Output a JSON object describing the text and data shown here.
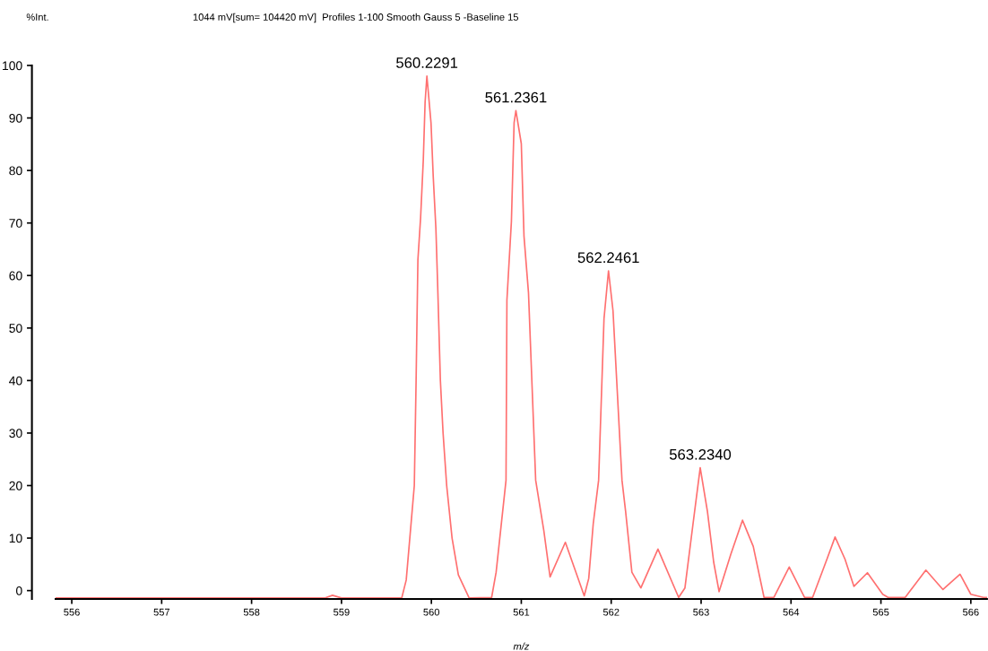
{
  "chart_data": {
    "type": "line",
    "title": "1044 mV[sum= 104420 mV]  Profiles 1-100 Smooth Gauss 5 -Baseline 15",
    "ylabel": "%Int.",
    "xlabel": "m/z",
    "series": [
      {
        "color": "#ff7070",
        "x": [
          555.82,
          558.82,
          558.9,
          559.0,
          559.67,
          559.72,
          559.76,
          559.81,
          559.83,
          559.85,
          559.88,
          559.91,
          559.93,
          559.95,
          559.996,
          560.02,
          560.05,
          560.07,
          560.1,
          560.13,
          560.17,
          560.23,
          560.3,
          560.42,
          560.67,
          560.72,
          560.83,
          560.84,
          560.89,
          560.92,
          560.94,
          561.0,
          561.03,
          561.08,
          561.16,
          561.25,
          561.32,
          561.49,
          561.7,
          561.75,
          561.8,
          561.86,
          561.92,
          561.97,
          562.02,
          562.12,
          562.16,
          562.23,
          562.33,
          562.52,
          562.75,
          562.82,
          562.91,
          562.99,
          563.07,
          563.14,
          563.2,
          563.33,
          563.46,
          563.58,
          563.7,
          563.81,
          563.98,
          564.15,
          564.24,
          564.4,
          564.49,
          564.6,
          564.7,
          564.85,
          565.02,
          565.08,
          565.27,
          565.5,
          565.69,
          565.88,
          566.0,
          566.14,
          566.18
        ],
        "values": [
          -1.4,
          -1.4,
          -0.9,
          -1.4,
          -1.4,
          2,
          10,
          20,
          40,
          63,
          71,
          82,
          93,
          98,
          89,
          79,
          69,
          58,
          40,
          30,
          20,
          10,
          3,
          -1.4,
          -1.3,
          3.5,
          21,
          55.3,
          70.3,
          89.1,
          91.4,
          85.1,
          67.5,
          56.7,
          21,
          11.5,
          2.6,
          9.2,
          -1.0,
          2.3,
          12.7,
          21,
          51.8,
          60.9,
          53.3,
          21,
          15.1,
          3.5,
          0.5,
          7.9,
          -1.3,
          0.5,
          12.7,
          23.4,
          15.1,
          5.4,
          -0.2,
          6.9,
          13.4,
          8.4,
          -1.3,
          -1.3,
          4.5,
          -1.3,
          -1.3,
          6.0,
          10.2,
          6.0,
          0.8,
          3.4,
          -0.7,
          -1.3,
          -1.3,
          3.9,
          0.2,
          3.1,
          -0.7,
          -1.3,
          -1.3
        ]
      }
    ],
    "annotations": [
      {
        "text": "560.2291",
        "x": 559.95,
        "y": 98
      },
      {
        "text": "561.2361",
        "x": 560.94,
        "y": 91.4
      },
      {
        "text": "562.2461",
        "x": 561.97,
        "y": 60.9
      },
      {
        "text": "563.2340",
        "x": 562.99,
        "y": 23.4
      }
    ],
    "xlim": [
      555.82,
      566.18
    ],
    "xticks": [
      556,
      557,
      558,
      559,
      560,
      561,
      562,
      563,
      564,
      565,
      566
    ],
    "ylim": [
      -1.6,
      100
    ],
    "yticks": [
      0,
      10,
      20,
      30,
      40,
      50,
      60,
      70,
      80,
      90,
      100
    ],
    "grid": false,
    "legend": false
  }
}
